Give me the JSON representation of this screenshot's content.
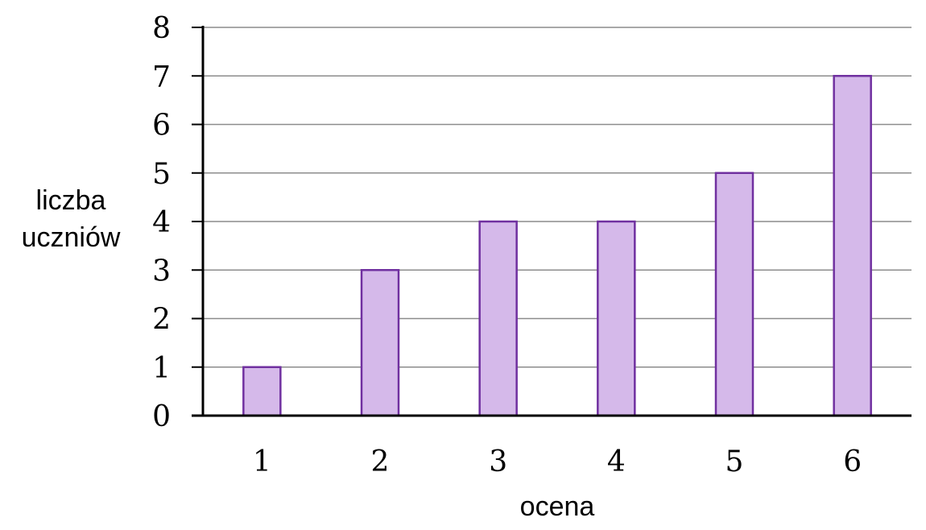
{
  "chart_data": {
    "type": "bar",
    "categories": [
      "1",
      "2",
      "3",
      "4",
      "5",
      "6"
    ],
    "values": [
      1,
      3,
      4,
      4,
      5,
      7
    ],
    "title": "",
    "xlabel": "ocena",
    "ylabel_lines": [
      "liczba",
      "uczniów"
    ],
    "ylim": [
      0,
      8
    ],
    "yticks": [
      "0",
      "1",
      "2",
      "3",
      "4",
      "5",
      "6",
      "7",
      "8"
    ],
    "grid": true,
    "legend": "none",
    "colors": {
      "bar_fill": "#d5b9ea",
      "bar_stroke": "#7030a0",
      "grid": "#8c8c8c",
      "axis": "#000000"
    }
  }
}
